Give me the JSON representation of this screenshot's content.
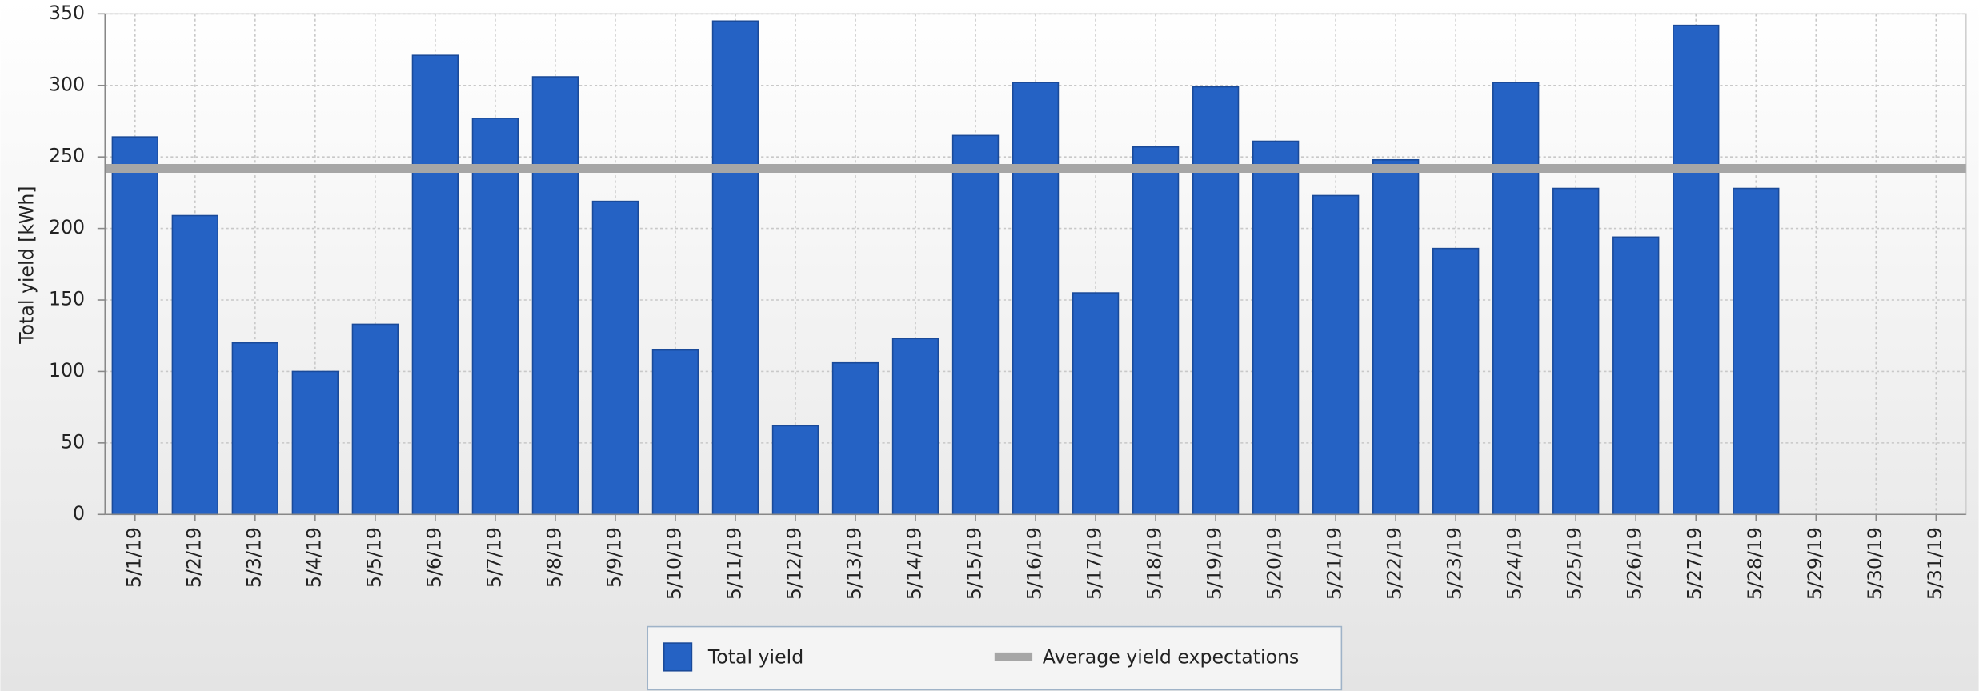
{
  "chart_data": {
    "type": "bar",
    "y_label": "Total yield [kWh]",
    "categories": [
      "5/1/19",
      "5/2/19",
      "5/3/19",
      "5/4/19",
      "5/5/19",
      "5/6/19",
      "5/7/19",
      "5/8/19",
      "5/9/19",
      "5/10/19",
      "5/11/19",
      "5/12/19",
      "5/13/19",
      "5/14/19",
      "5/15/19",
      "5/16/19",
      "5/17/19",
      "5/18/19",
      "5/19/19",
      "5/20/19",
      "5/21/19",
      "5/22/19",
      "5/23/19",
      "5/24/19",
      "5/25/19",
      "5/26/19",
      "5/27/19",
      "5/28/19",
      "5/29/19",
      "5/30/19",
      "5/31/19"
    ],
    "series": [
      {
        "name": "Total yield",
        "color": "#2562c4",
        "values": [
          264,
          209,
          120,
          100,
          133,
          321,
          277,
          306,
          219,
          115,
          345,
          62,
          106,
          123,
          265,
          302,
          155,
          257,
          299,
          261,
          223,
          248,
          186,
          302,
          228,
          194,
          342,
          228,
          null,
          null,
          null
        ]
      }
    ],
    "reference_line": {
      "name": "Average yield expectations",
      "value": 242,
      "color": "#a6a6a6"
    },
    "ylim": [
      0,
      350
    ],
    "yticks": [
      0,
      50,
      100,
      150,
      200,
      250,
      300,
      350
    ],
    "grid": true
  }
}
